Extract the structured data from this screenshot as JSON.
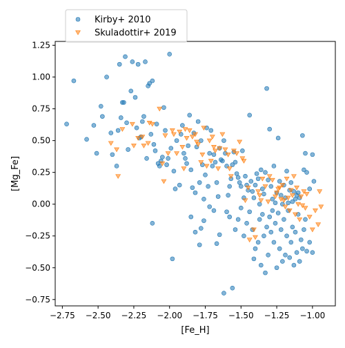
{
  "chart_data": {
    "type": "scatter",
    "xlabel": "[Fe_H]",
    "ylabel": "[Mg_Fe]",
    "xlim": [
      -2.8,
      -0.84
    ],
    "ylim": [
      -0.8,
      1.28
    ],
    "xticks": [
      -2.75,
      -2.5,
      -2.25,
      -2.0,
      -1.75,
      -1.5,
      -1.25,
      -1.0
    ],
    "xtick_labels": [
      "−2.75",
      "−2.50",
      "−2.25",
      "−2.00",
      "−1.75",
      "−1.50",
      "−1.25",
      "−1.00"
    ],
    "yticks": [
      -0.75,
      -0.5,
      -0.25,
      0.0,
      0.25,
      0.5,
      0.75,
      1.0,
      1.25
    ],
    "ytick_labels": [
      "−0.75",
      "−0.50",
      "−0.25",
      "0.00",
      "0.25",
      "0.50",
      "0.75",
      "1.00",
      "1.25"
    ],
    "grid": false,
    "legend_position": "top-left",
    "series": [
      {
        "name": "Kirby+ 2010",
        "color": "#1f77b4",
        "marker": "circle",
        "points": [
          [
            -2.72,
            0.63
          ],
          [
            -2.67,
            0.97
          ],
          [
            -2.58,
            0.51
          ],
          [
            -2.53,
            0.62
          ],
          [
            -2.51,
            0.4
          ],
          [
            -2.48,
            0.77
          ],
          [
            -2.47,
            0.69
          ],
          [
            -2.44,
            1.0
          ],
          [
            -2.41,
            0.56
          ],
          [
            -2.4,
            0.39
          ],
          [
            -2.37,
            0.3
          ],
          [
            -2.36,
            0.58
          ],
          [
            -2.35,
            1.1
          ],
          [
            -2.34,
            0.68
          ],
          [
            -2.33,
            0.8
          ],
          [
            -2.32,
            0.8
          ],
          [
            -2.31,
            1.16
          ],
          [
            -2.3,
            0.64
          ],
          [
            -2.29,
            0.43
          ],
          [
            -2.27,
            0.89
          ],
          [
            -2.26,
            1.12
          ],
          [
            -2.24,
            0.84
          ],
          [
            -2.23,
            0.6
          ],
          [
            -2.22,
            1.1
          ],
          [
            -2.21,
            0.52
          ],
          [
            -2.2,
            0.53
          ],
          [
            -2.19,
            0.65
          ],
          [
            -2.18,
            0.69
          ],
          [
            -2.17,
            1.12
          ],
          [
            -2.16,
            0.36
          ],
          [
            -2.15,
            0.93
          ],
          [
            -2.14,
            0.95
          ],
          [
            -2.13,
            0.55
          ],
          [
            -2.12,
            0.97
          ],
          [
            -2.11,
            0.47
          ],
          [
            -2.1,
            0.42
          ],
          [
            -2.09,
            0.63
          ],
          [
            -2.08,
            0.32
          ],
          [
            -2.07,
            0.3
          ],
          [
            -2.06,
            0.34
          ],
          [
            -2.05,
            0.37
          ],
          [
            -2.04,
            0.76
          ],
          [
            -2.03,
            0.58
          ],
          [
            -2.02,
            0.31
          ],
          [
            -2.01,
            0.36
          ],
          [
            -2.0,
            1.18
          ],
          [
            -1.99,
            0.44
          ],
          [
            -1.97,
            0.26
          ],
          [
            -1.96,
            0.12
          ],
          [
            -1.95,
            0.5
          ],
          [
            -1.93,
            0.15
          ],
          [
            -1.92,
            0.55
          ],
          [
            -1.91,
            0.62
          ],
          [
            -1.9,
            0.4
          ],
          [
            -1.89,
            0.36
          ],
          [
            -1.88,
            0.32
          ],
          [
            -1.87,
            0.46
          ],
          [
            -1.86,
            0.7
          ],
          [
            -1.85,
            0.27
          ],
          [
            -1.84,
            0.13
          ],
          [
            -1.83,
            0.56
          ],
          [
            -1.82,
            0.09
          ],
          [
            -1.81,
            0.45
          ],
          [
            -1.8,
            0.65
          ],
          [
            -1.79,
            0.17
          ],
          [
            -1.78,
            0.5
          ],
          [
            -1.77,
            0.31
          ],
          [
            -1.76,
            0.04
          ],
          [
            -1.75,
            0.23
          ],
          [
            -1.74,
            0.6
          ],
          [
            -1.73,
            0.14
          ],
          [
            -1.72,
            0.4
          ],
          [
            -1.71,
            0.58
          ],
          [
            -1.7,
            0.3
          ],
          [
            -1.69,
            0.39
          ],
          [
            -1.68,
            0.33
          ],
          [
            -1.67,
            0.17
          ],
          [
            -1.66,
            0.06
          ],
          [
            -1.65,
            0.44
          ],
          [
            -1.64,
            0.35
          ],
          [
            -1.63,
            0.34
          ],
          [
            -1.62,
            0.5
          ],
          [
            -1.61,
            0.4
          ],
          [
            -1.6,
            0.3
          ],
          [
            -1.59,
            0.07
          ],
          [
            -1.58,
            0.14
          ],
          [
            -1.57,
            0.2
          ],
          [
            -1.56,
            0.31
          ],
          [
            -1.55,
            0.41
          ],
          [
            -1.54,
            0.33
          ],
          [
            -1.53,
            0.24
          ],
          [
            -1.52,
            0.21
          ],
          [
            -1.51,
            0.17
          ],
          [
            -1.5,
            0.14
          ],
          [
            -1.49,
            0.42
          ],
          [
            -1.48,
            0.05
          ],
          [
            -1.47,
            0.22
          ],
          [
            -1.46,
            0.15
          ],
          [
            -1.45,
            0.11
          ],
          [
            -1.44,
            0.7
          ],
          [
            -1.43,
            0.18
          ],
          [
            -1.42,
            0.1
          ],
          [
            -1.41,
            0.05
          ],
          [
            -1.4,
            0.15
          ],
          [
            -1.39,
            0.24
          ],
          [
            -1.38,
            0.2
          ],
          [
            -1.37,
            0.0
          ],
          [
            -1.36,
            0.27
          ],
          [
            -1.35,
            0.12
          ],
          [
            -1.34,
            0.08
          ],
          [
            -1.33,
            0.25
          ],
          [
            -1.32,
            0.91
          ],
          [
            -1.31,
            0.19
          ],
          [
            -1.3,
            0.59
          ],
          [
            -1.29,
            0.14
          ],
          [
            -1.28,
            0.04
          ],
          [
            -1.27,
            0.3
          ],
          [
            -1.26,
            0.01
          ],
          [
            -1.25,
            0.09
          ],
          [
            -1.24,
            0.52
          ],
          [
            -1.23,
            0.18
          ],
          [
            -1.22,
            0.07
          ],
          [
            -1.21,
            0.0
          ],
          [
            -1.2,
            0.15
          ],
          [
            -1.19,
            0.05
          ],
          [
            -1.18,
            0.26
          ],
          [
            -1.17,
            0.01
          ],
          [
            -1.16,
            0.11
          ],
          [
            -1.15,
            0.17
          ],
          [
            -1.14,
            0.02
          ],
          [
            -1.13,
            0.1
          ],
          [
            -1.12,
            0.04
          ],
          [
            -1.11,
            0.07
          ],
          [
            -1.1,
            0.09
          ],
          [
            -1.09,
            0.05
          ],
          [
            -1.07,
            0.54
          ],
          [
            -1.06,
            0.27
          ],
          [
            -1.05,
            0.4
          ],
          [
            -1.04,
            0.25
          ],
          [
            -1.02,
            0.12
          ],
          [
            -1.0,
            0.39
          ],
          [
            -0.99,
            0.18
          ],
          [
            -2.12,
            -0.15
          ],
          [
            -1.98,
            -0.43
          ],
          [
            -1.85,
            -0.1
          ],
          [
            -1.82,
            -0.22
          ],
          [
            -1.79,
            -0.32
          ],
          [
            -1.78,
            -0.19
          ],
          [
            -1.76,
            -0.13
          ],
          [
            -1.72,
            -0.02
          ],
          [
            -1.69,
            -0.05
          ],
          [
            -1.67,
            -0.31
          ],
          [
            -1.65,
            -0.24
          ],
          [
            -1.62,
            -0.7
          ],
          [
            -1.6,
            -0.06
          ],
          [
            -1.58,
            -0.1
          ],
          [
            -1.56,
            -0.66
          ],
          [
            -1.54,
            -0.2
          ],
          [
            -1.52,
            -0.12
          ],
          [
            -1.5,
            -0.03
          ],
          [
            -1.48,
            -0.25
          ],
          [
            -1.46,
            -0.15
          ],
          [
            -1.44,
            -0.06
          ],
          [
            -1.42,
            -0.2
          ],
          [
            -1.41,
            -0.43
          ],
          [
            -1.4,
            -0.35
          ],
          [
            -1.38,
            -0.3
          ],
          [
            -1.37,
            -0.12
          ],
          [
            -1.36,
            -0.48
          ],
          [
            -1.35,
            -0.08
          ],
          [
            -1.34,
            -0.25
          ],
          [
            -1.33,
            -0.54
          ],
          [
            -1.32,
            -0.18
          ],
          [
            -1.31,
            -0.4
          ],
          [
            -1.3,
            -0.1
          ],
          [
            -1.29,
            -0.22
          ],
          [
            -1.28,
            -0.05
          ],
          [
            -1.27,
            -0.3
          ],
          [
            -1.26,
            -0.15
          ],
          [
            -1.25,
            -0.5
          ],
          [
            -1.24,
            -0.07
          ],
          [
            -1.23,
            -0.35
          ],
          [
            -1.22,
            -0.2
          ],
          [
            -1.21,
            -0.45
          ],
          [
            -1.2,
            -0.12
          ],
          [
            -1.19,
            -0.4
          ],
          [
            -1.18,
            -0.25
          ],
          [
            -1.17,
            -0.05
          ],
          [
            -1.16,
            -0.42
          ],
          [
            -1.15,
            -0.3
          ],
          [
            -1.14,
            -0.18
          ],
          [
            -1.13,
            -0.48
          ],
          [
            -1.12,
            -0.22
          ],
          [
            -1.11,
            -0.38
          ],
          [
            -1.1,
            -0.08
          ],
          [
            -1.09,
            -0.45
          ],
          [
            -1.08,
            -0.28
          ],
          [
            -1.07,
            -0.35
          ],
          [
            -1.06,
            -0.2
          ],
          [
            -1.05,
            -0.12
          ],
          [
            -1.04,
            -0.37
          ],
          [
            -1.02,
            -0.3
          ],
          [
            -1.0,
            -0.38
          ]
        ]
      },
      {
        "name": "Skuladottir+ 2019",
        "color": "#ff7f0e",
        "marker": "triangle_down",
        "points": [
          [
            -2.41,
            0.48
          ],
          [
            -2.37,
            0.43
          ],
          [
            -2.36,
            0.22
          ],
          [
            -2.33,
            0.59
          ],
          [
            -2.26,
            0.63
          ],
          [
            -2.25,
            0.46
          ],
          [
            -2.22,
            0.52
          ],
          [
            -2.19,
            0.53
          ],
          [
            -2.18,
            0.46
          ],
          [
            -2.15,
            0.48
          ],
          [
            -2.14,
            0.64
          ],
          [
            -2.12,
            0.63
          ],
          [
            -2.07,
            0.75
          ],
          [
            -2.05,
            0.32
          ],
          [
            -2.04,
            0.18
          ],
          [
            -2.03,
            0.54
          ],
          [
            -2.01,
            0.4
          ],
          [
            -1.98,
            0.58
          ],
          [
            -1.97,
            0.55
          ],
          [
            -1.95,
            0.4
          ],
          [
            -1.93,
            0.57
          ],
          [
            -1.91,
            0.45
          ],
          [
            -1.9,
            0.28
          ],
          [
            -1.89,
            0.59
          ],
          [
            -1.88,
            0.52
          ],
          [
            -1.86,
            0.58
          ],
          [
            -1.84,
            0.53
          ],
          [
            -1.82,
            0.55
          ],
          [
            -1.81,
            0.49
          ],
          [
            -1.8,
            0.47
          ],
          [
            -1.78,
            0.33
          ],
          [
            -1.77,
            0.39
          ],
          [
            -1.76,
            0.6
          ],
          [
            -1.74,
            0.3
          ],
          [
            -1.72,
            0.5
          ],
          [
            -1.71,
            0.34
          ],
          [
            -1.7,
            0.53
          ],
          [
            -1.69,
            0.45
          ],
          [
            -1.68,
            0.42
          ],
          [
            -1.66,
            0.28
          ],
          [
            -1.65,
            0.44
          ],
          [
            -1.63,
            0.55
          ],
          [
            -1.61,
            0.43
          ],
          [
            -1.59,
            0.39
          ],
          [
            -1.58,
            0.28
          ],
          [
            -1.57,
            0.22
          ],
          [
            -1.55,
            0.42
          ],
          [
            -1.53,
            0.4
          ],
          [
            -1.51,
            0.49
          ],
          [
            -1.49,
            0.36
          ],
          [
            -1.48,
            0.34
          ],
          [
            -1.47,
            0.03
          ],
          [
            -1.45,
            0.13
          ],
          [
            -1.44,
            -0.28
          ],
          [
            -1.41,
            -0.2
          ],
          [
            -1.4,
            -0.26
          ],
          [
            -1.38,
            0.1
          ],
          [
            -1.37,
            0.07
          ],
          [
            -1.36,
            0.03
          ],
          [
            -1.35,
            0.2
          ],
          [
            -1.33,
            0.14
          ],
          [
            -1.31,
            0.02
          ],
          [
            -1.3,
            0.22
          ],
          [
            -1.28,
            0.19
          ],
          [
            -1.26,
            0.06
          ],
          [
            -1.25,
            0.09
          ],
          [
            -1.24,
            0.12
          ],
          [
            -1.23,
            0.13
          ],
          [
            -1.22,
            0.04
          ],
          [
            -1.21,
            0.15
          ],
          [
            -1.2,
            0.03
          ],
          [
            -1.19,
            -0.02
          ],
          [
            -1.18,
            0.2
          ],
          [
            -1.17,
            0.05
          ],
          [
            -1.16,
            -0.05
          ],
          [
            -1.15,
            0.11
          ],
          [
            -1.14,
            0.07
          ],
          [
            -1.13,
            0.22
          ],
          [
            -1.12,
            -0.08
          ],
          [
            -1.11,
            0.13
          ],
          [
            -1.1,
            0.0
          ],
          [
            -1.09,
            -0.12
          ],
          [
            -1.08,
            0.06
          ],
          [
            -1.07,
            -0.01
          ],
          [
            -1.06,
            0.1
          ],
          [
            -1.05,
            -0.03
          ],
          [
            -1.04,
            0.08
          ],
          [
            -1.02,
            -0.1
          ],
          [
            -1.0,
            -0.2
          ],
          [
            -0.98,
            -0.05
          ],
          [
            -0.96,
            -0.16
          ],
          [
            -0.95,
            0.1
          ],
          [
            -0.94,
            -0.02
          ]
        ]
      }
    ]
  }
}
